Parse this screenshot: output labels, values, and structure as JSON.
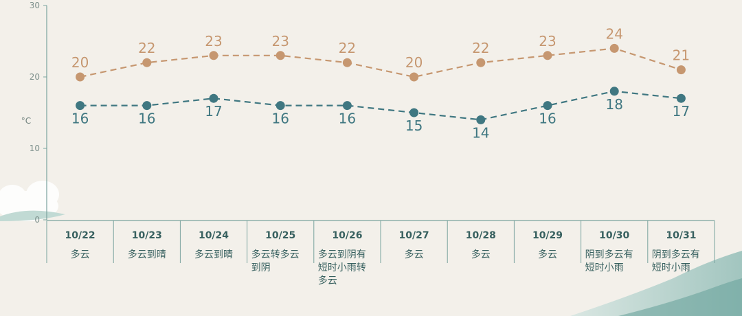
{
  "chart_data": {
    "type": "line",
    "title": "",
    "xlabel": "",
    "ylabel": "°C",
    "ylim": [
      0,
      30
    ],
    "yticks": [
      0,
      10,
      20,
      30
    ],
    "grid": false,
    "categories": [
      "10/22",
      "10/23",
      "10/24",
      "10/25",
      "10/26",
      "10/27",
      "10/28",
      "10/29",
      "10/30",
      "10/31"
    ],
    "weather": [
      [
        "多云"
      ],
      [
        "多云到晴"
      ],
      [
        "多云到晴"
      ],
      [
        "多云转多云",
        "到阴"
      ],
      [
        "多云到阴有",
        "短时小雨转",
        "多云"
      ],
      [
        "多云"
      ],
      [
        "多云"
      ],
      [
        "多云"
      ],
      [
        "阴到多云有",
        "短时小雨"
      ],
      [
        "阴到多云有",
        "短时小雨"
      ]
    ],
    "series": [
      {
        "values": [
          20,
          22,
          23,
          23,
          22,
          20,
          22,
          23,
          24,
          21
        ]
      },
      {
        "values": [
          16,
          16,
          17,
          16,
          16,
          15,
          14,
          16,
          18,
          17
        ]
      }
    ],
    "colors": {
      "high": "#c69770",
      "low": "#3f7781",
      "axis": "#7aa39e",
      "text": "#37605f"
    }
  }
}
